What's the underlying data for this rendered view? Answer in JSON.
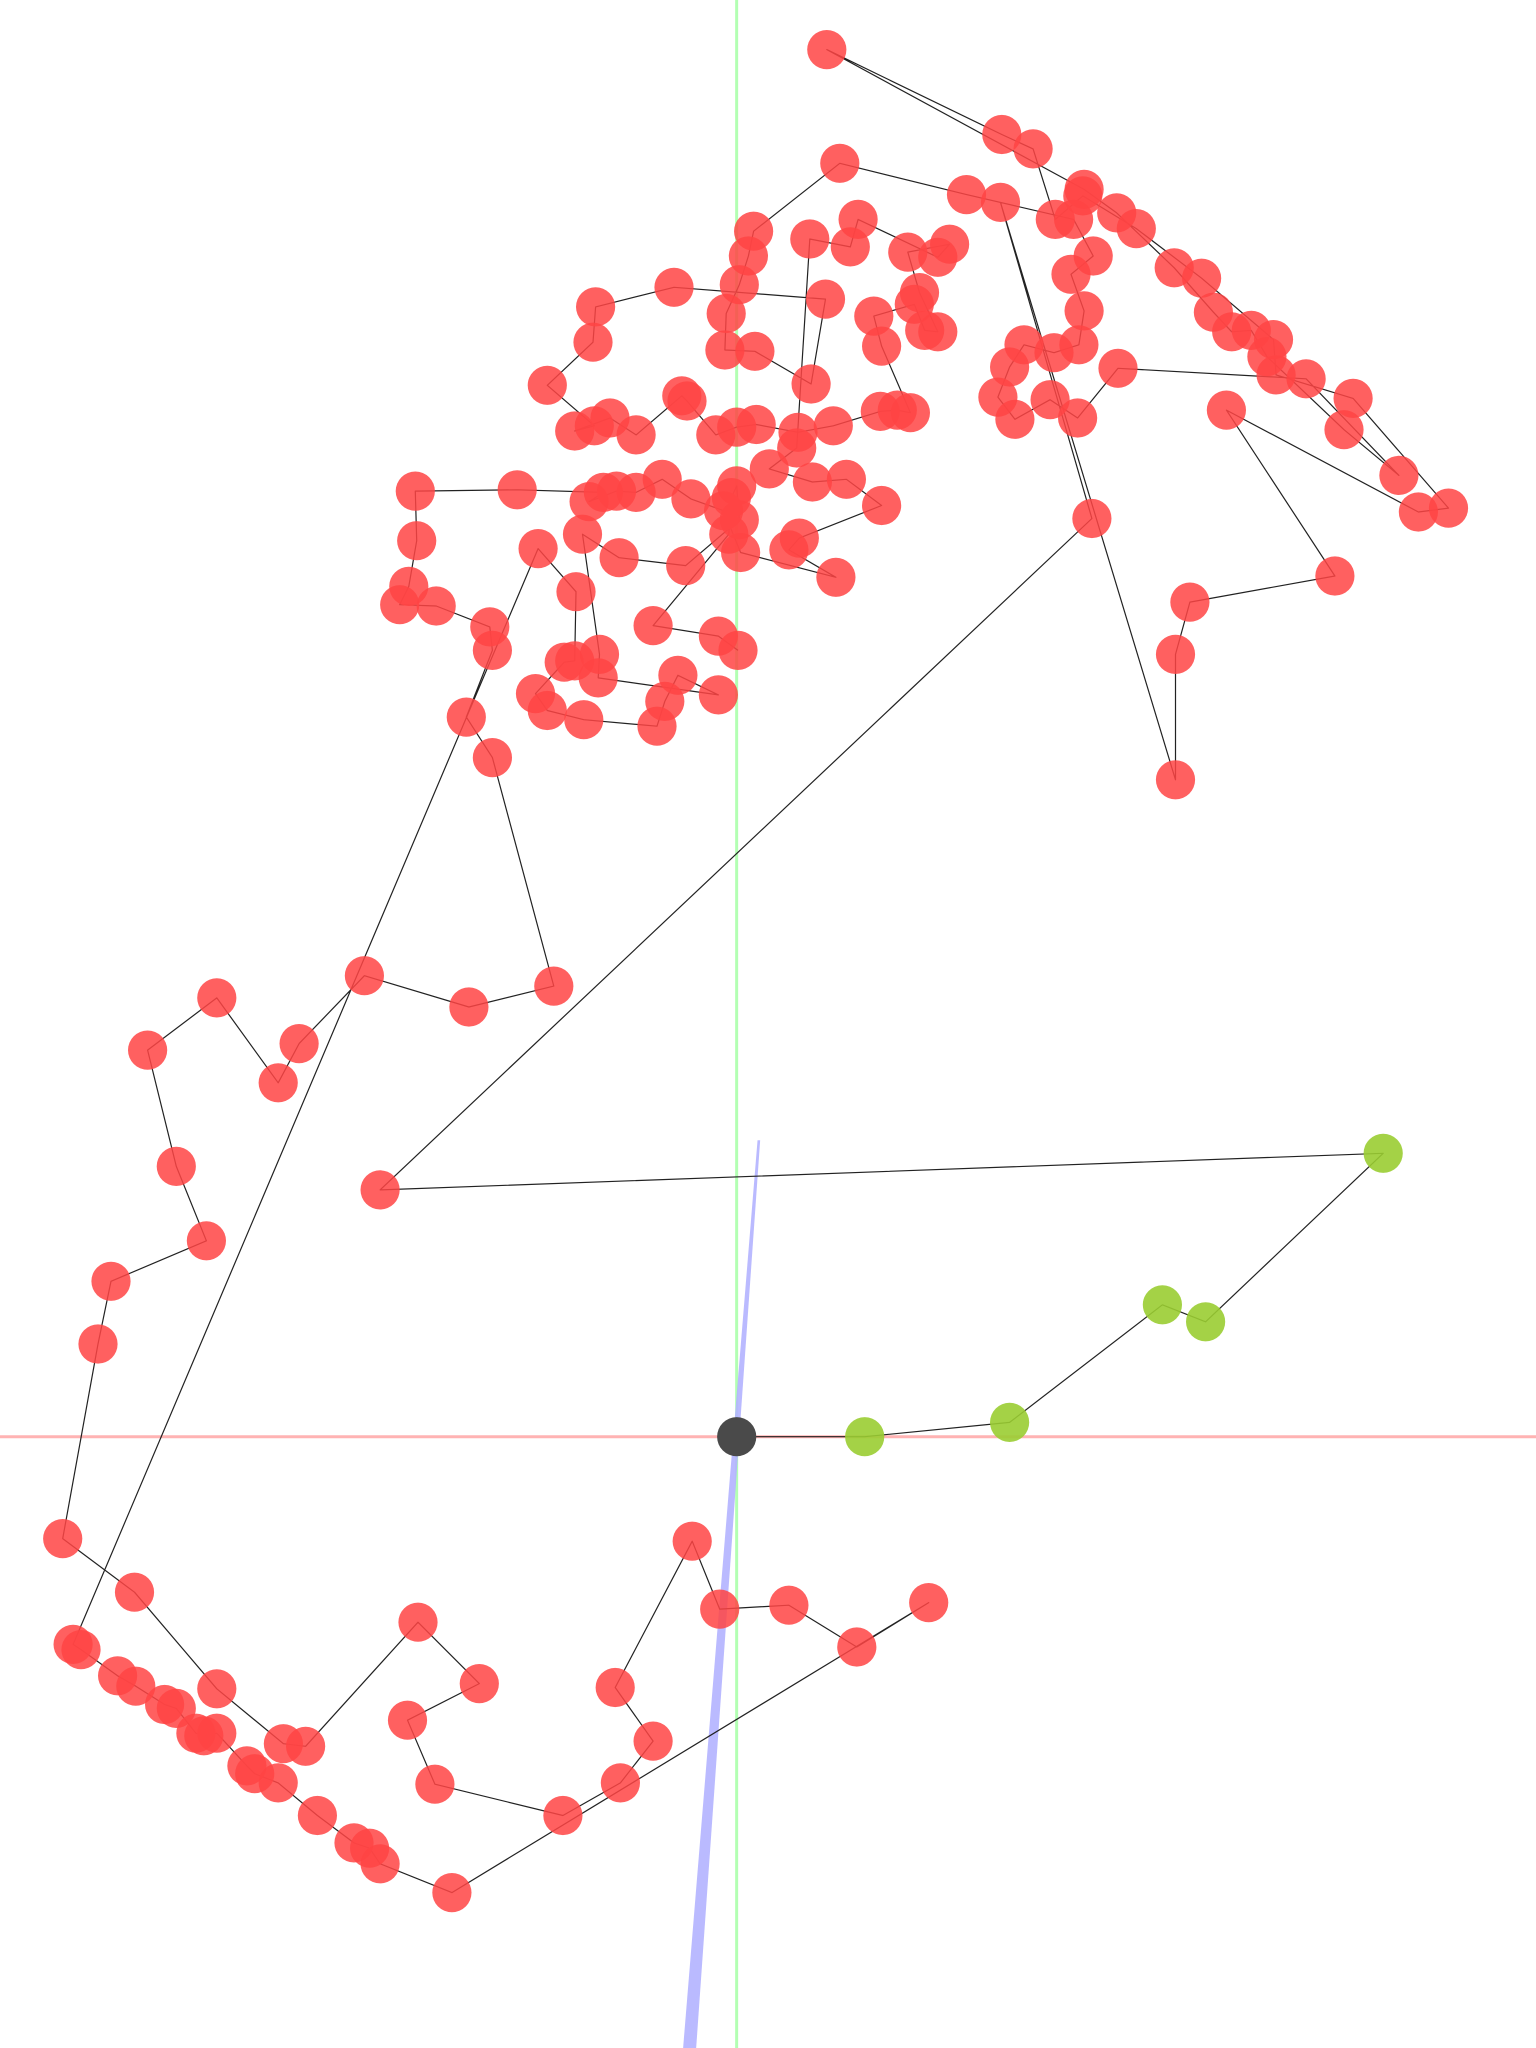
{
  "scene": {
    "type": "3d-point-path-viewer",
    "background_color": "#ffffff",
    "axes": {
      "x_axis_color": "#ffb3b3",
      "y_axis_color": "#b3ffb3",
      "z_axis_color": "#b3b3ff"
    },
    "origin": {
      "color": "#4a4a4a",
      "label": ""
    },
    "path_line_color": "#222222",
    "series": [
      {
        "id": "highlight",
        "color": "#9acd32",
        "point_count": 5
      },
      {
        "id": "main",
        "color": "#ff4444",
        "point_count": 230
      }
    ]
  }
}
